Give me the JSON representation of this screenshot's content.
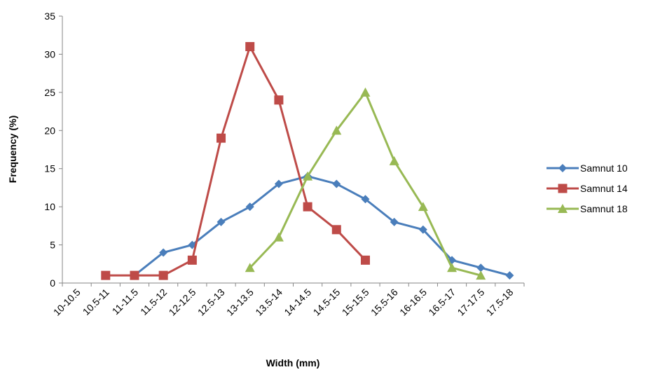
{
  "chart_data": {
    "type": "line",
    "title": "",
    "xlabel": "Width (mm)",
    "ylabel": "Frequency (%)",
    "categories": [
      "10-10.5",
      "10.5-11",
      "11-11.5",
      "11.5-12",
      "12-12.5",
      "12.5-13",
      "13-13.5",
      "13.5-14",
      "14-14.5",
      "14.5-15",
      "15-15.5",
      "15.5-16",
      "16-16.5",
      "16.5-17",
      "17-17.5",
      "17.5-18"
    ],
    "ylim": [
      0,
      35
    ],
    "yticks": [
      0,
      5,
      10,
      15,
      20,
      25,
      30,
      35
    ],
    "grid": false,
    "legend_position": "right",
    "series": [
      {
        "name": "Samnut 10",
        "color": "#4A7EBB",
        "marker": "diamond",
        "values": [
          null,
          null,
          1,
          4,
          5,
          8,
          10,
          13,
          14,
          13,
          11,
          8,
          7,
          3,
          2,
          1
        ]
      },
      {
        "name": "Samnut 14",
        "color": "#BE4B48",
        "marker": "square",
        "values": [
          null,
          1,
          1,
          1,
          3,
          19,
          31,
          24,
          10,
          7,
          3,
          null,
          null,
          null,
          null,
          null
        ]
      },
      {
        "name": "Samnut 18",
        "color": "#98B954",
        "marker": "triangle",
        "values": [
          null,
          null,
          null,
          null,
          null,
          null,
          2,
          6,
          14,
          20,
          25,
          16,
          10,
          2,
          1,
          null
        ]
      }
    ]
  }
}
